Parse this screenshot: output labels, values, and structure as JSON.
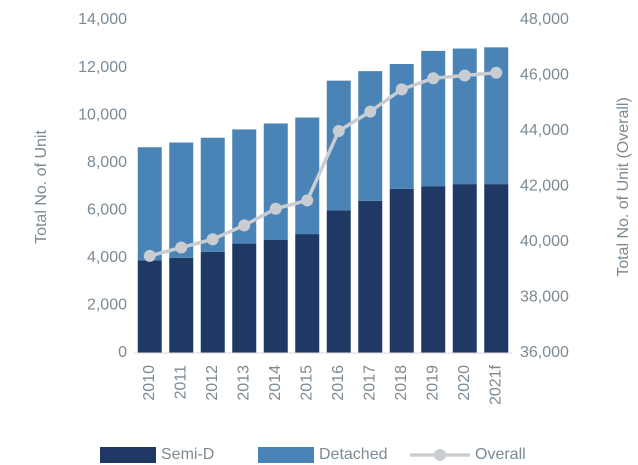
{
  "chart_data": {
    "type": "stacked-bar-line",
    "categories": [
      "2010",
      "2011",
      "2012",
      "2013",
      "2014",
      "2015",
      "2016",
      "2017",
      "2018",
      "2019",
      "2020",
      "2021f"
    ],
    "series": [
      {
        "name": "Semi-D",
        "color": "#1f3864",
        "values": [
          3900,
          4000,
          4250,
          4600,
          4750,
          5000,
          6000,
          6400,
          6900,
          7000,
          7100,
          7100
        ]
      },
      {
        "name": "Detached",
        "color": "#4a84b6",
        "values": [
          4750,
          4850,
          4800,
          4800,
          4900,
          4900,
          5450,
          5450,
          5250,
          5700,
          5700,
          5750
        ]
      },
      {
        "name": "Overall",
        "color": "#c9cdd2",
        "axis": "y2",
        "values": [
          39500,
          39800,
          40100,
          40600,
          41200,
          41500,
          44000,
          44700,
          45500,
          45900,
          46000,
          46100
        ]
      }
    ],
    "ylabel": "Total No. of Unit",
    "y2label": "Total No. of Unit (Overall)",
    "ylim": [
      0,
      14000
    ],
    "yticks": [
      0,
      {
        "value": 2000,
        "label": "2,000"
      },
      {
        "value": 4000,
        "label": "4,000"
      },
      {
        "value": 6000,
        "label": "6,000"
      },
      {
        "value": 8000,
        "label": "8,000"
      },
      {
        "value": 10000,
        "label": "10,000"
      },
      {
        "value": 12000,
        "label": "12,000"
      },
      {
        "value": 14000,
        "label": "14,000"
      }
    ],
    "y2lim": [
      36000,
      48000
    ],
    "y2ticks": [
      {
        "value": 36000,
        "label": "36,000"
      },
      {
        "value": 38000,
        "label": "38,000"
      },
      {
        "value": 40000,
        "label": "40,000"
      },
      {
        "value": 42000,
        "label": "42,000"
      },
      {
        "value": 44000,
        "label": "44,000"
      },
      {
        "value": 46000,
        "label": "46,000"
      },
      {
        "value": 48000,
        "label": "48,000"
      }
    ],
    "grid": false,
    "legend": "bottom"
  }
}
